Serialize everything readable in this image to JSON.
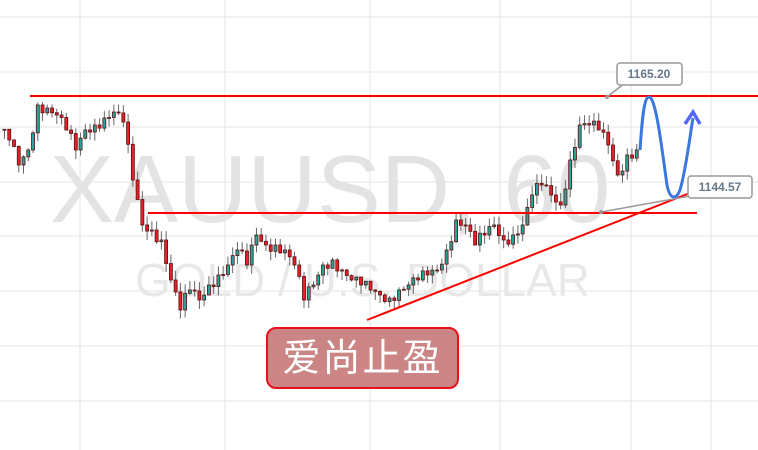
{
  "chart_data": {
    "type": "candlestick",
    "symbol_watermark": "XAUUSD, 60",
    "description_watermark": "GOLD / U.S. DOLLAR",
    "grid": true,
    "closes": [
      1159.15,
      1157.37,
      1152.92,
      1155.59,
      1163.6,
      1163.06,
      1161.82,
      1159.15,
      1155.59,
      1159.15,
      1160.04,
      1161.28,
      1162.35,
      1160.57,
      1150.25,
      1142.24,
      1141.35,
      1139.57,
      1132.45,
      1127.11,
      1130.67,
      1128.89,
      1131.56,
      1133.34,
      1135.12,
      1137.79,
      1135.12,
      1140.46,
      1138.68,
      1138.68,
      1137.79,
      1135.12,
      1128.89,
      1131.56,
      1135.12,
      1136.01,
      1134.23,
      1132.45,
      1131.56,
      1130.67,
      1129.78,
      1129.24,
      1130.67,
      1131.56,
      1132.45,
      1133.34,
      1134.23,
      1137.79,
      1143.13,
      1142.24,
      1138.68,
      1140.46,
      1142.24,
      1139.57,
      1140.46,
      1142.24,
      1147.58,
      1149.36,
      1147.58,
      1145.8,
      1153.81,
      1160.04,
      1160.04,
      1159.15,
      1156.48,
      1151.14,
      1154.7,
      1155.59
    ],
    "colors": {
      "up": "#26a69a",
      "down": "#e8202a",
      "outline": "#5a1010",
      "levels": "#ff0000",
      "projection": "#3a78e0",
      "arrow": "#5566ff"
    },
    "annotations": {
      "resistance": {
        "price": 1165.2,
        "label": "1165.20"
      },
      "support": {
        "price": 1144.57,
        "label": "1144.57"
      },
      "trendline": "rising support",
      "projection": "down then up (arrow)"
    }
  },
  "stamp": {
    "text": "爱尚止盈"
  }
}
